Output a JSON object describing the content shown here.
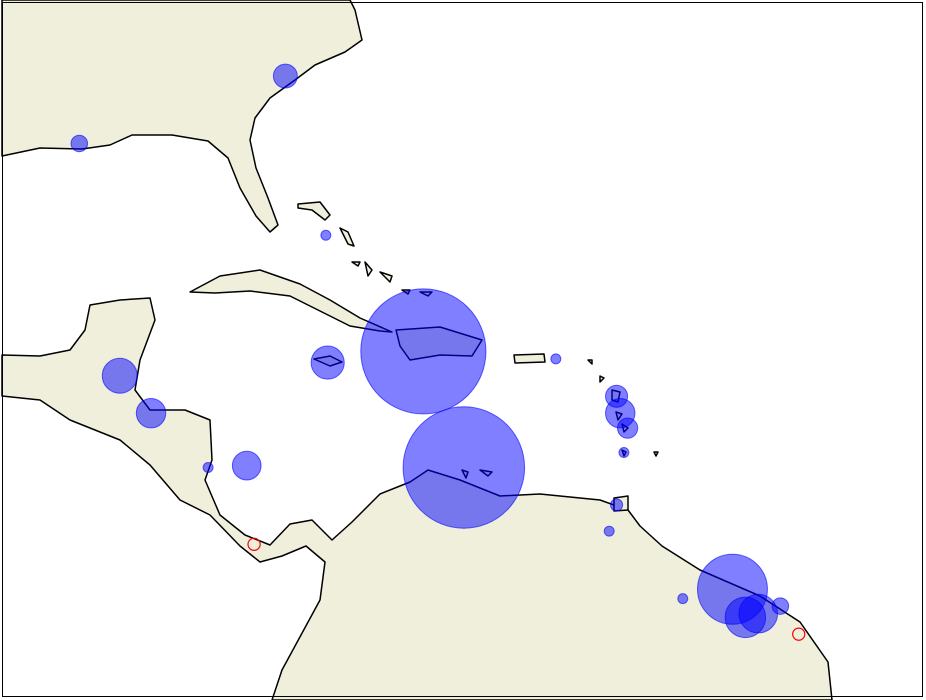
{
  "map": {
    "extent": {
      "lon": [
        -95.1,
        -45.1
      ],
      "lat": [
        0.3,
        37.3
      ]
    },
    "land_color": "#efefdb",
    "coastline_color": "#000000",
    "marker_fill_color": "#0000ff",
    "marker_fill_opacity": 0.5,
    "hollow_marker_color": "#ff0000",
    "markers": [
      {
        "lon": -79.7,
        "lat": 33.4,
        "size": 0.65
      },
      {
        "lon": -90.9,
        "lat": 29.8,
        "size": 0.45
      },
      {
        "lon": -77.5,
        "lat": 24.9,
        "size": 0.27
      },
      {
        "lon": -72.2,
        "lat": 18.7,
        "size": 3.4
      },
      {
        "lon": -70.0,
        "lat": 12.5,
        "size": 3.3
      },
      {
        "lon": -77.4,
        "lat": 18.1,
        "size": 0.9
      },
      {
        "lon": -88.7,
        "lat": 17.4,
        "size": 0.95
      },
      {
        "lon": -87.0,
        "lat": 15.4,
        "size": 0.8
      },
      {
        "lon": -81.8,
        "lat": 12.6,
        "size": 0.78
      },
      {
        "lon": -83.9,
        "lat": 12.5,
        "size": 0.27
      },
      {
        "lon": -65.0,
        "lat": 18.3,
        "size": 0.27
      },
      {
        "lon": -61.7,
        "lat": 16.3,
        "size": 0.6
      },
      {
        "lon": -61.5,
        "lat": 15.4,
        "size": 0.8
      },
      {
        "lon": -61.1,
        "lat": 14.6,
        "size": 0.55
      },
      {
        "lon": -61.3,
        "lat": 13.3,
        "size": 0.27
      },
      {
        "lon": -61.7,
        "lat": 10.5,
        "size": 0.33
      },
      {
        "lon": -62.1,
        "lat": 9.1,
        "size": 0.27
      },
      {
        "lon": -55.4,
        "lat": 6.0,
        "size": 1.9
      },
      {
        "lon": -54.7,
        "lat": 4.5,
        "size": 1.1
      },
      {
        "lon": -54.0,
        "lat": 4.7,
        "size": 1.05
      },
      {
        "lon": -52.8,
        "lat": 5.1,
        "size": 0.45
      },
      {
        "lon": -58.1,
        "lat": 5.5,
        "size": 0.27
      }
    ],
    "hollow_markers": [
      {
        "lon": -81.4,
        "lat": 8.4,
        "size": 0.33
      },
      {
        "lon": -51.8,
        "lat": 3.6,
        "size": 0.33
      }
    ]
  }
}
